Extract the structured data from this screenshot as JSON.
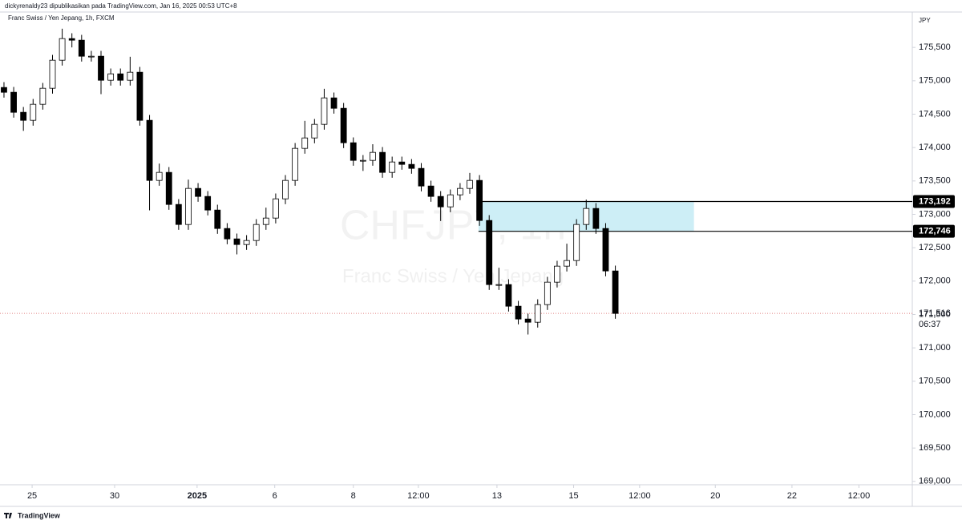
{
  "header": {
    "publisher": "dickyrenaldy23 dipublikasikan pada TradingView.com, Jan 16, 2025 00:53 UTC+8",
    "symbol": "Franc Swiss / Yen Jepang, 1h, FXCM"
  },
  "chart_data": {
    "type": "candlestick",
    "watermark": "CHFJPY, 1h",
    "watermark_subtitle": "Franc Swiss / Yen Jepang",
    "y_unit": "JPY",
    "open": [
      174900,
      174828,
      174528,
      174408,
      174648,
      174888,
      175308,
      175632,
      175608,
      175368,
      175368,
      175008,
      175104,
      175008,
      175128,
      174408,
      173508,
      173628,
      173148,
      172848,
      173388,
      173268,
      173064,
      172788,
      172632,
      172548,
      172608,
      172848,
      172944,
      173232,
      173508,
      173988,
      174144,
      174348,
      174744,
      174588,
      174072,
      173808,
      173808,
      173928,
      173628,
      173784,
      173748,
      173688,
      173424,
      173268,
      173112,
      173292,
      173388,
      173508,
      172908,
      171948,
      171948,
      171624,
      171432,
      171384,
      171648,
      171984,
      172224,
      172308,
      172848,
      173088,
      172788,
      172152
    ],
    "high": [
      174980,
      174908,
      174608,
      174728,
      174968,
      175388,
      175780,
      175712,
      175688,
      175448,
      175448,
      175184,
      175184,
      175360,
      175208,
      174488,
      173760,
      173708,
      173228,
      173520,
      173468,
      173348,
      173144,
      172868,
      172712,
      172688,
      172928,
      173100,
      173312,
      173588,
      174068,
      174400,
      174428,
      174880,
      174824,
      174668,
      174152,
      173888,
      174050,
      174008,
      173864,
      173864,
      173828,
      173768,
      173504,
      173348,
      173372,
      173468,
      173620,
      173588,
      172988,
      172200,
      172028,
      171704,
      171512,
      171728,
      172064,
      172304,
      172560,
      172928,
      173220,
      173168,
      172868,
      172232
    ],
    "low": [
      174748,
      174448,
      174250,
      174328,
      174568,
      174808,
      175228,
      175500,
      175288,
      175288,
      174800,
      174928,
      174928,
      174928,
      174328,
      173060,
      173428,
      173068,
      172768,
      172768,
      173188,
      172984,
      172708,
      172552,
      172400,
      172468,
      172528,
      172768,
      172864,
      173152,
      173428,
      173908,
      174064,
      174268,
      174508,
      173992,
      173728,
      173650,
      173728,
      173548,
      173548,
      173668,
      173608,
      173344,
      173188,
      172900,
      173032,
      173212,
      173308,
      172828,
      171868,
      171868,
      171544,
      171352,
      171200,
      171304,
      171568,
      171904,
      172144,
      172228,
      172768,
      172708,
      172072,
      171436
    ],
    "close": [
      174828,
      174528,
      174408,
      174648,
      174888,
      175308,
      175632,
      175608,
      175368,
      175368,
      175008,
      175104,
      175008,
      175128,
      174408,
      173508,
      173628,
      173148,
      172848,
      173388,
      173268,
      173064,
      172788,
      172632,
      172548,
      172608,
      172848,
      172944,
      173232,
      173508,
      173988,
      174144,
      174348,
      174744,
      174588,
      174072,
      173808,
      173808,
      173928,
      173628,
      173784,
      173748,
      173688,
      173424,
      173268,
      173112,
      173292,
      173388,
      173508,
      172908,
      171948,
      171948,
      171624,
      171432,
      171384,
      171648,
      171984,
      172224,
      172308,
      172848,
      173088,
      172788,
      172152,
      171516
    ],
    "up_color": "#ffffff",
    "down_color": "#000000",
    "xlim": [
      -0.41,
      93.6
    ],
    "xticks": [
      {
        "value": 2.9,
        "label": "25"
      },
      {
        "value": 11.4,
        "label": "30"
      },
      {
        "value": 19.9,
        "label": "2025"
      },
      {
        "value": 27.9,
        "label": "6"
      },
      {
        "value": 36,
        "label": "8"
      },
      {
        "value": 42.7,
        "label": "12:00"
      },
      {
        "value": 50.8,
        "label": "13"
      },
      {
        "value": 58.7,
        "label": "15"
      },
      {
        "value": 65.5,
        "label": "12:00"
      },
      {
        "value": 73.3,
        "label": "20"
      },
      {
        "value": 81.2,
        "label": "22"
      },
      {
        "value": 88.1,
        "label": "12:00"
      }
    ],
    "ylim": [
      168950,
      176030
    ],
    "yticks": [
      {
        "value": 169000,
        "label": "169,000"
      },
      {
        "value": 169500,
        "label": "169,500"
      },
      {
        "value": 170000,
        "label": "170,000"
      },
      {
        "value": 170500,
        "label": "170,500"
      },
      {
        "value": 171000,
        "label": "171,000"
      },
      {
        "value": 171500,
        "label": "171,500"
      },
      {
        "value": 172000,
        "label": "172,000"
      },
      {
        "value": 172500,
        "label": "172,500"
      },
      {
        "value": 173000,
        "label": "173,000"
      },
      {
        "value": 173500,
        "label": "173,500"
      },
      {
        "value": 174000,
        "label": "174,000"
      },
      {
        "value": 174500,
        "label": "174,500"
      },
      {
        "value": 175000,
        "label": "175,000"
      },
      {
        "value": 175500,
        "label": "175,500"
      }
    ],
    "zone": {
      "top": 173192,
      "bottom": 172746,
      "x_start": 48.9,
      "x_end": 71.1,
      "color": "#cdeef6"
    },
    "price_lines": [
      {
        "value": 173192,
        "label": "173,192"
      },
      {
        "value": 172746,
        "label": "172,746"
      }
    ],
    "last_price": {
      "value": 171516,
      "label": "171,516",
      "countdown": "06:37",
      "color": "#e08080"
    }
  },
  "footer": {
    "brand": "TradingView"
  }
}
